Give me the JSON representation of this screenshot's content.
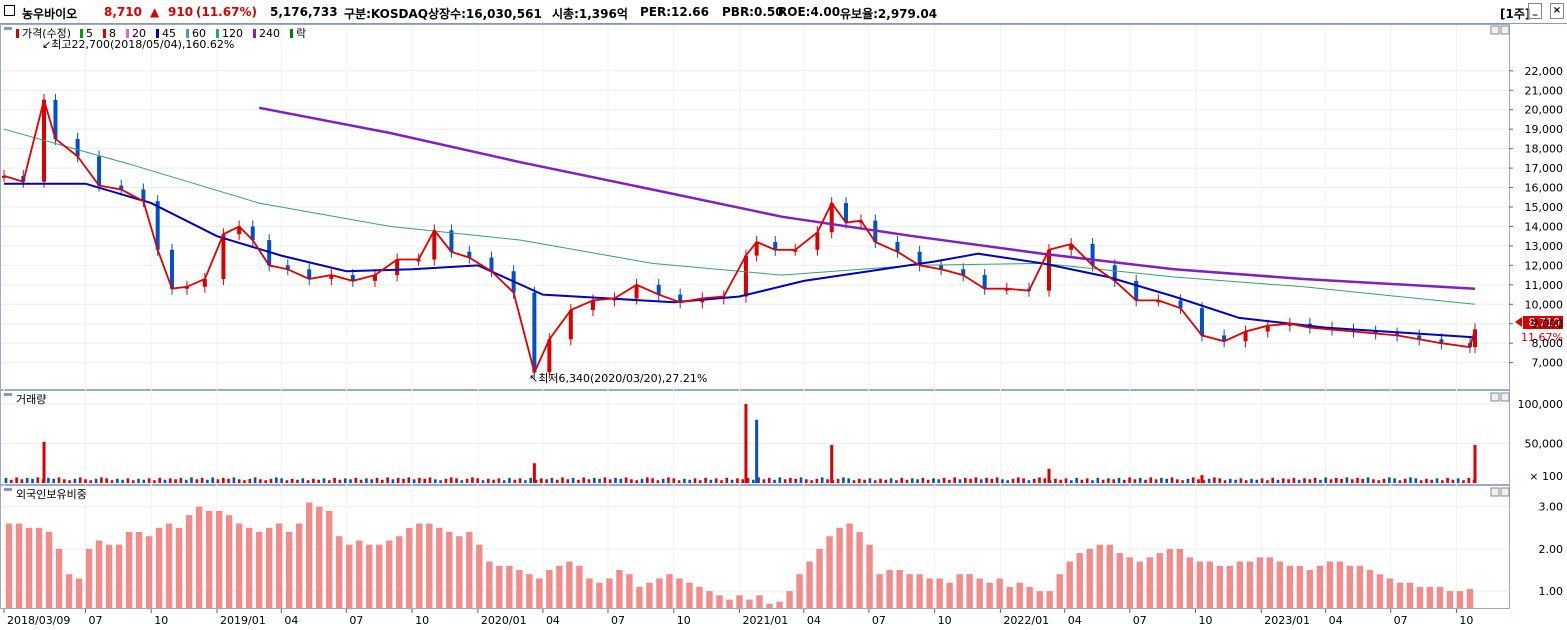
{
  "header": {
    "stock_name": "농우바이오",
    "price": "8,710",
    "change_arrow": "▲",
    "change": "910",
    "change_pct": "(11.67%)",
    "volume": "5,176,733",
    "market": "구분:KOSDAQ",
    "listed_shares": "상장수:16,030,561",
    "market_cap": "시총:1,396억",
    "per": "PER:12.66",
    "pbr": "PBR:0.50",
    "roe": "ROE:4.00",
    "float_rate": "유보율:2,979.04",
    "period_button": "[1주]",
    "colors": {
      "up": "#d90000",
      "down": "#0050c8",
      "accent": "#e0e0e0"
    }
  },
  "window_controls": {
    "minimize": "_",
    "maximize": "□",
    "close": "×"
  },
  "legend": {
    "price": "가격(수정)",
    "ma": [
      {
        "label": "5",
        "color": "#00a000"
      },
      {
        "label": "8",
        "color": "#e00000"
      },
      {
        "label": "20",
        "color": "#d070d0"
      },
      {
        "label": "45",
        "color": "#0000c0"
      },
      {
        "label": "60",
        "color": "#4c9ab8"
      },
      {
        "label": "120",
        "color": "#3aa070"
      },
      {
        "label": "240",
        "color": "#8020c0"
      }
    ],
    "fall": "락",
    "fall_color": "#008000"
  },
  "panels": {
    "volume_title": "거래량",
    "foreign_title": "외국인보유비중"
  },
  "chart_data": [
    {
      "type": "candlestick",
      "title": "",
      "x_tick_labels": [
        "2018/03/09",
        "07",
        "10",
        "2019/01",
        "04",
        "07",
        "10",
        "2020/01",
        "04",
        "07",
        "10",
        "2021/01",
        "04",
        "07",
        "10",
        "2022/01",
        "04",
        "07",
        "10",
        "2023/01",
        "04",
        "07",
        "10"
      ],
      "x_ticks": [
        "2018-03-09",
        "2018-07-01",
        "2018-10-01",
        "2019-01-01",
        "2019-04-01",
        "2019-07-01",
        "2019-10-01",
        "2020-01-01",
        "2020-04-01",
        "2020-07-01",
        "2020-10-01",
        "2021-01-01",
        "2021-04-01",
        "2021-07-01",
        "2021-10-01",
        "2022-01-01",
        "2022-04-01",
        "2022-07-01",
        "2022-10-01",
        "2023-01-01",
        "2023-04-01",
        "2023-07-01",
        "2023-10-01"
      ],
      "x_range": [
        "2018-03-09",
        "2023-10-27"
      ],
      "y_tick_labels": [
        "7,000",
        "8,000",
        "9,000",
        "10,000",
        "11,000",
        "12,000",
        "13,000",
        "14,000",
        "15,000",
        "16,000",
        "17,000",
        "18,000",
        "19,000",
        "20,000",
        "21,000",
        "22,000"
      ],
      "y_ticks": [
        7000,
        8000,
        9000,
        10000,
        11000,
        12000,
        13000,
        14000,
        15000,
        16000,
        17000,
        18000,
        19000,
        20000,
        21000,
        22000
      ],
      "ylim": [
        5800,
        24200
      ],
      "price_close": [
        [
          "2018-03-09",
          16600
        ],
        [
          "2018-04-05",
          16300
        ],
        [
          "2018-05-04",
          20500
        ],
        [
          "2018-05-20",
          18500
        ],
        [
          "2018-06-20",
          17600
        ],
        [
          "2018-07-20",
          16100
        ],
        [
          "2018-08-20",
          15900
        ],
        [
          "2018-09-20",
          15300
        ],
        [
          "2018-10-10",
          12800
        ],
        [
          "2018-10-30",
          10800
        ],
        [
          "2018-11-20",
          10900
        ],
        [
          "2018-12-15",
          11300
        ],
        [
          "2019-01-10",
          13600
        ],
        [
          "2019-02-01",
          14000
        ],
        [
          "2019-02-20",
          13300
        ],
        [
          "2019-03-15",
          12000
        ],
        [
          "2019-04-10",
          11800
        ],
        [
          "2019-05-10",
          11300
        ],
        [
          "2019-06-10",
          11500
        ],
        [
          "2019-07-10",
          11200
        ],
        [
          "2019-08-10",
          11500
        ],
        [
          "2019-09-10",
          12300
        ],
        [
          "2019-10-10",
          12300
        ],
        [
          "2019-11-01",
          13800
        ],
        [
          "2019-11-25",
          12700
        ],
        [
          "2019-12-20",
          12400
        ],
        [
          "2020-01-20",
          11700
        ],
        [
          "2020-02-20",
          10600
        ],
        [
          "2020-03-20",
          6500
        ],
        [
          "2020-04-10",
          8200
        ],
        [
          "2020-05-10",
          9700
        ],
        [
          "2020-06-10",
          10200
        ],
        [
          "2020-07-10",
          10300
        ],
        [
          "2020-08-10",
          11000
        ],
        [
          "2020-09-10",
          10500
        ],
        [
          "2020-10-10",
          10100
        ],
        [
          "2020-11-10",
          10300
        ],
        [
          "2020-12-10",
          10400
        ],
        [
          "2021-01-10",
          12500
        ],
        [
          "2021-01-25",
          13200
        ],
        [
          "2021-02-20",
          12800
        ],
        [
          "2021-03-20",
          12800
        ],
        [
          "2021-04-20",
          13700
        ],
        [
          "2021-05-10",
          15200
        ],
        [
          "2021-05-30",
          14200
        ],
        [
          "2021-06-20",
          14300
        ],
        [
          "2021-07-10",
          13200
        ],
        [
          "2021-08-10",
          12700
        ],
        [
          "2021-09-10",
          12000
        ],
        [
          "2021-10-10",
          11800
        ],
        [
          "2021-11-10",
          11500
        ],
        [
          "2021-12-10",
          10800
        ],
        [
          "2022-01-10",
          10800
        ],
        [
          "2022-02-10",
          10700
        ],
        [
          "2022-03-10",
          12800
        ],
        [
          "2022-04-10",
          13100
        ],
        [
          "2022-05-10",
          12000
        ],
        [
          "2022-06-10",
          11200
        ],
        [
          "2022-07-10",
          10200
        ],
        [
          "2022-08-10",
          10200
        ],
        [
          "2022-09-10",
          9800
        ],
        [
          "2022-10-10",
          8400
        ],
        [
          "2022-11-10",
          8100
        ],
        [
          "2022-12-10",
          8600
        ],
        [
          "2023-01-10",
          8900
        ],
        [
          "2023-02-10",
          9000
        ],
        [
          "2023-03-10",
          8800
        ],
        [
          "2023-04-10",
          8700
        ],
        [
          "2023-05-10",
          8600
        ],
        [
          "2023-06-10",
          8500
        ],
        [
          "2023-07-10",
          8400
        ],
        [
          "2023-08-10",
          8200
        ],
        [
          "2023-09-10",
          8000
        ],
        [
          "2023-10-20",
          7800
        ],
        [
          "2023-10-27",
          8710
        ]
      ],
      "ma240": [
        [
          "2019-03-01",
          20100
        ],
        [
          "2019-09-01",
          18800
        ],
        [
          "2020-03-01",
          17300
        ],
        [
          "2020-09-01",
          15900
        ],
        [
          "2021-03-01",
          14500
        ],
        [
          "2021-09-01",
          13500
        ],
        [
          "2022-03-01",
          12600
        ],
        [
          "2022-09-01",
          11800
        ],
        [
          "2023-03-01",
          11300
        ],
        [
          "2023-10-27",
          10800
        ]
      ],
      "ma120": [
        [
          "2018-03-09",
          19000
        ],
        [
          "2018-09-01",
          17200
        ],
        [
          "2019-03-01",
          15200
        ],
        [
          "2019-09-01",
          14000
        ],
        [
          "2020-03-01",
          13300
        ],
        [
          "2020-09-01",
          12100
        ],
        [
          "2021-03-01",
          11500
        ],
        [
          "2021-09-01",
          12000
        ],
        [
          "2022-03-01",
          12100
        ],
        [
          "2022-09-01",
          11400
        ],
        [
          "2023-03-01",
          10900
        ],
        [
          "2023-10-27",
          10000
        ]
      ],
      "ma45": [
        [
          "2018-03-09",
          16200
        ],
        [
          "2018-07-01",
          16200
        ],
        [
          "2018-10-01",
          15200
        ],
        [
          "2019-01-01",
          13500
        ],
        [
          "2019-04-01",
          12500
        ],
        [
          "2019-07-01",
          11700
        ],
        [
          "2019-10-01",
          11800
        ],
        [
          "2020-01-01",
          12000
        ],
        [
          "2020-04-01",
          10500
        ],
        [
          "2020-07-01",
          10300
        ],
        [
          "2020-10-01",
          10100
        ],
        [
          "2021-01-01",
          10400
        ],
        [
          "2021-04-01",
          11200
        ],
        [
          "2021-07-01",
          11700
        ],
        [
          "2021-10-01",
          12200
        ],
        [
          "2021-12-01",
          12600
        ],
        [
          "2022-03-01",
          12100
        ],
        [
          "2022-06-01",
          11400
        ],
        [
          "2022-09-01",
          10400
        ],
        [
          "2022-12-01",
          9300
        ],
        [
          "2023-04-01",
          8800
        ],
        [
          "2023-10-27",
          8300
        ]
      ],
      "high_annotation": "↙최고22,700(2018/05/04),160.62%",
      "low_annotation": "↖최저6,340(2020/03/20),27.21%",
      "current_price_label": "8,710",
      "current_change_label": "11.67%"
    },
    {
      "type": "bar",
      "title": "거래량",
      "y_tick_labels": [
        "100,000",
        "50,000",
        "× 100"
      ],
      "y_ticks": [
        100000,
        50000
      ],
      "ylim": [
        0,
        110000
      ],
      "unit": "× 100",
      "spikes": [
        [
          "2018-05-04",
          52000
        ],
        [
          "2020-03-20",
          25000
        ],
        [
          "2021-01-10",
          100000
        ],
        [
          "2021-01-25",
          80000
        ],
        [
          "2021-05-10",
          48000
        ],
        [
          "2022-03-10",
          18000
        ],
        [
          "2022-10-10",
          10000
        ],
        [
          "2023-10-27",
          48000
        ]
      ]
    },
    {
      "type": "bar",
      "title": "외국인보유비중",
      "y_tick_labels": [
        "3.00",
        "2.00",
        "1.00"
      ],
      "y_ticks": [
        3.0,
        2.0,
        1.0
      ],
      "ylim": [
        0.6,
        3.3
      ],
      "values": [
        2.6,
        2.6,
        2.5,
        2.5,
        2.4,
        2.0,
        1.4,
        1.3,
        2.0,
        2.2,
        2.1,
        2.1,
        2.4,
        2.4,
        2.3,
        2.5,
        2.6,
        2.5,
        2.8,
        3.0,
        2.9,
        2.9,
        2.8,
        2.6,
        2.5,
        2.4,
        2.5,
        2.6,
        2.4,
        2.6,
        3.1,
        3.0,
        2.9,
        2.3,
        2.1,
        2.2,
        2.1,
        2.1,
        2.2,
        2.3,
        2.5,
        2.6,
        2.6,
        2.5,
        2.4,
        2.3,
        2.4,
        2.1,
        1.7,
        1.6,
        1.6,
        1.5,
        1.4,
        1.3,
        1.5,
        1.6,
        1.7,
        1.6,
        1.3,
        1.2,
        1.3,
        1.5,
        1.4,
        1.1,
        1.2,
        1.3,
        1.4,
        1.3,
        1.2,
        1.1,
        1.0,
        0.9,
        0.8,
        0.9,
        0.8,
        0.9,
        0.7,
        0.75,
        1.0,
        1.4,
        1.7,
        2.0,
        2.3,
        2.5,
        2.6,
        2.4,
        2.1,
        1.4,
        1.5,
        1.5,
        1.4,
        1.4,
        1.3,
        1.3,
        1.2,
        1.4,
        1.4,
        1.3,
        1.2,
        1.3,
        1.1,
        1.2,
        1.1,
        1.0,
        1.0,
        1.4,
        1.7,
        1.9,
        2.0,
        2.1,
        2.1,
        1.9,
        1.8,
        1.7,
        1.8,
        1.9,
        2.0,
        2.0,
        1.8,
        1.7,
        1.7,
        1.6,
        1.6,
        1.7,
        1.7,
        1.8,
        1.8,
        1.7,
        1.6,
        1.6,
        1.5,
        1.6,
        1.7,
        1.7,
        1.6,
        1.6,
        1.5,
        1.4,
        1.3,
        1.2,
        1.2,
        1.1,
        1.1,
        1.1,
        1.0,
        1.0,
        1.05
      ]
    }
  ]
}
